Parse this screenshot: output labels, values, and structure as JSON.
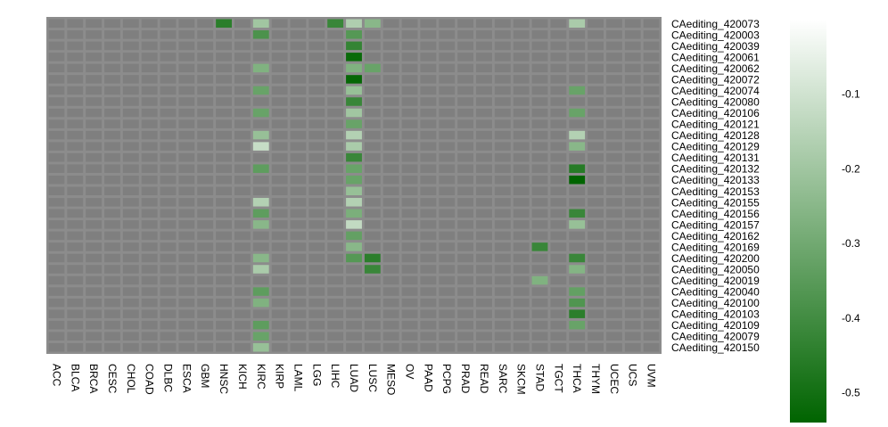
{
  "chart_data": {
    "type": "heatmap",
    "title": "",
    "xlabel": "",
    "ylabel": "",
    "x_categories": [
      "ACC",
      "BLCA",
      "BRCA",
      "CESC",
      "CHOL",
      "COAD",
      "DLBC",
      "ESCA",
      "GBM",
      "HNSC",
      "KICH",
      "KIRC",
      "KIRP",
      "LAML",
      "LGG",
      "LIHC",
      "LUAD",
      "LUSC",
      "MESO",
      "OV",
      "PAAD",
      "PCPG",
      "PRAD",
      "READ",
      "SARC",
      "SKCM",
      "STAD",
      "TGCT",
      "THCA",
      "THYM",
      "UCEC",
      "UCS",
      "UVM"
    ],
    "y_categories": [
      "CAediting_420073",
      "CAediting_420003",
      "CAediting_420039",
      "CAediting_420061",
      "CAediting_420062",
      "CAediting_420072",
      "CAediting_420074",
      "CAediting_420080",
      "CAediting_420106",
      "CAediting_420121",
      "CAediting_420128",
      "CAediting_420129",
      "CAediting_420131",
      "CAediting_420132",
      "CAediting_420133",
      "CAediting_420153",
      "CAediting_420155",
      "CAediting_420156",
      "CAediting_420157",
      "CAediting_420162",
      "CAediting_420169",
      "CAediting_420200",
      "CAediting_420050",
      "CAediting_420019",
      "CAediting_420040",
      "CAediting_420100",
      "CAediting_420103",
      "CAediting_420109",
      "CAediting_420079",
      "CAediting_420150"
    ],
    "na_color": "#7f7f7f",
    "grid_color": "#8c8c8c",
    "colorscale": {
      "low_color": "#006400",
      "high_color": "#ffffff",
      "range": [
        -0.54,
        0
      ],
      "ticks": [
        -0.1,
        -0.2,
        -0.3,
        -0.4,
        -0.5
      ],
      "tick_labels": [
        "-0.1",
        "-0.2",
        "-0.3",
        "-0.4",
        "-0.5"
      ],
      "placement": "right"
    },
    "cells": [
      {
        "row": "CAediting_420073",
        "col": "HNSC",
        "value": -0.45
      },
      {
        "row": "CAediting_420073",
        "col": "KIRC",
        "value": -0.2
      },
      {
        "row": "CAediting_420073",
        "col": "LIHC",
        "value": -0.42
      },
      {
        "row": "CAediting_420073",
        "col": "LUAD",
        "value": -0.17
      },
      {
        "row": "CAediting_420073",
        "col": "LUSC",
        "value": -0.25
      },
      {
        "row": "CAediting_420073",
        "col": "THCA",
        "value": -0.18
      },
      {
        "row": "CAediting_420003",
        "col": "KIRC",
        "value": -0.38
      },
      {
        "row": "CAediting_420003",
        "col": "LUAD",
        "value": -0.36
      },
      {
        "row": "CAediting_420039",
        "col": "LUAD",
        "value": -0.43
      },
      {
        "row": "CAediting_420061",
        "col": "LUAD",
        "value": -0.52
      },
      {
        "row": "CAediting_420062",
        "col": "KIRC",
        "value": -0.27
      },
      {
        "row": "CAediting_420062",
        "col": "LUAD",
        "value": -0.27
      },
      {
        "row": "CAediting_420062",
        "col": "LUSC",
        "value": -0.32
      },
      {
        "row": "CAediting_420072",
        "col": "LUAD",
        "value": -0.53
      },
      {
        "row": "CAediting_420074",
        "col": "KIRC",
        "value": -0.32
      },
      {
        "row": "CAediting_420074",
        "col": "LUAD",
        "value": -0.22
      },
      {
        "row": "CAediting_420074",
        "col": "THCA",
        "value": -0.32
      },
      {
        "row": "CAediting_420080",
        "col": "LUAD",
        "value": -0.42
      },
      {
        "row": "CAediting_420106",
        "col": "KIRC",
        "value": -0.32
      },
      {
        "row": "CAediting_420106",
        "col": "LUAD",
        "value": -0.2
      },
      {
        "row": "CAediting_420106",
        "col": "THCA",
        "value": -0.32
      },
      {
        "row": "CAediting_420121",
        "col": "LUAD",
        "value": -0.32
      },
      {
        "row": "CAediting_420128",
        "col": "KIRC",
        "value": -0.22
      },
      {
        "row": "CAediting_420128",
        "col": "LUAD",
        "value": -0.16
      },
      {
        "row": "CAediting_420128",
        "col": "THCA",
        "value": -0.16
      },
      {
        "row": "CAediting_420129",
        "col": "KIRC",
        "value": -0.12
      },
      {
        "row": "CAediting_420129",
        "col": "LUAD",
        "value": -0.18
      },
      {
        "row": "CAediting_420129",
        "col": "THCA",
        "value": -0.25
      },
      {
        "row": "CAediting_420131",
        "col": "LUAD",
        "value": -0.42
      },
      {
        "row": "CAediting_420132",
        "col": "KIRC",
        "value": -0.34
      },
      {
        "row": "CAediting_420132",
        "col": "LUAD",
        "value": -0.32
      },
      {
        "row": "CAediting_420132",
        "col": "THCA",
        "value": -0.46
      },
      {
        "row": "CAediting_420133",
        "col": "LUAD",
        "value": -0.32
      },
      {
        "row": "CAediting_420133",
        "col": "THCA",
        "value": -0.54
      },
      {
        "row": "CAediting_420153",
        "col": "LUAD",
        "value": -0.22
      },
      {
        "row": "CAediting_420155",
        "col": "KIRC",
        "value": -0.16
      },
      {
        "row": "CAediting_420155",
        "col": "LUAD",
        "value": -0.16
      },
      {
        "row": "CAediting_420156",
        "col": "KIRC",
        "value": -0.34
      },
      {
        "row": "CAediting_420156",
        "col": "LUAD",
        "value": -0.28
      },
      {
        "row": "CAediting_420156",
        "col": "THCA",
        "value": -0.42
      },
      {
        "row": "CAediting_420157",
        "col": "KIRC",
        "value": -0.25
      },
      {
        "row": "CAediting_420157",
        "col": "LUAD",
        "value": -0.13
      },
      {
        "row": "CAediting_420157",
        "col": "THCA",
        "value": -0.22
      },
      {
        "row": "CAediting_420162",
        "col": "LUAD",
        "value": -0.33
      },
      {
        "row": "CAediting_420169",
        "col": "LUAD",
        "value": -0.25
      },
      {
        "row": "CAediting_420169",
        "col": "STAD",
        "value": -0.42
      },
      {
        "row": "CAediting_420200",
        "col": "KIRC",
        "value": -0.25
      },
      {
        "row": "CAediting_420200",
        "col": "LUAD",
        "value": -0.36
      },
      {
        "row": "CAediting_420200",
        "col": "LUSC",
        "value": -0.45
      },
      {
        "row": "CAediting_420200",
        "col": "THCA",
        "value": -0.42
      },
      {
        "row": "CAediting_420050",
        "col": "KIRC",
        "value": -0.18
      },
      {
        "row": "CAediting_420050",
        "col": "LUSC",
        "value": -0.42
      },
      {
        "row": "CAediting_420050",
        "col": "THCA",
        "value": -0.26
      },
      {
        "row": "CAediting_420019",
        "col": "STAD",
        "value": -0.27
      },
      {
        "row": "CAediting_420040",
        "col": "KIRC",
        "value": -0.34
      },
      {
        "row": "CAediting_420040",
        "col": "THCA",
        "value": -0.33
      },
      {
        "row": "CAediting_420100",
        "col": "KIRC",
        "value": -0.27
      },
      {
        "row": "CAediting_420100",
        "col": "THCA",
        "value": -0.37
      },
      {
        "row": "CAediting_420103",
        "col": "THCA",
        "value": -0.45
      },
      {
        "row": "CAediting_420109",
        "col": "KIRC",
        "value": -0.34
      },
      {
        "row": "CAediting_420109",
        "col": "THCA",
        "value": -0.32
      },
      {
        "row": "CAediting_420079",
        "col": "KIRC",
        "value": -0.32
      },
      {
        "row": "CAediting_420150",
        "col": "KIRC",
        "value": -0.22
      }
    ]
  }
}
